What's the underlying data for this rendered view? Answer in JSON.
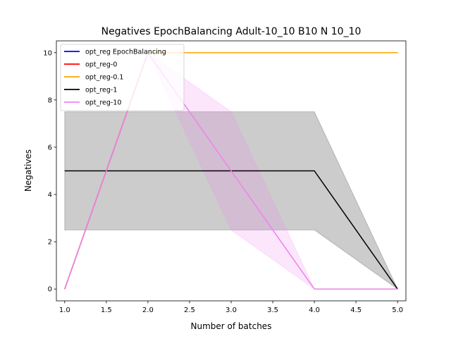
{
  "chart_data": {
    "type": "line",
    "title": "Negatives EpochBalancing Adult-10_10 B10 N 10_10",
    "xlabel": "Number of batches",
    "ylabel": "Negatives",
    "xlim": [
      0.9,
      5.1
    ],
    "ylim": [
      -0.5,
      10.5
    ],
    "xticks": [
      1.0,
      1.5,
      2.0,
      2.5,
      3.0,
      3.5,
      4.0,
      4.5,
      5.0
    ],
    "xtick_labels": [
      "1.0",
      "1.5",
      "2.0",
      "2.5",
      "3.0",
      "3.5",
      "4.0",
      "4.5",
      "5.0"
    ],
    "yticks": [
      0,
      2,
      4,
      6,
      8,
      10
    ],
    "ytick_labels": [
      "0",
      "2",
      "4",
      "6",
      "8",
      "10"
    ],
    "grid": false,
    "legend_position": "top-left",
    "x": [
      1,
      2,
      3,
      4,
      5
    ],
    "series": [
      {
        "name": "opt_reg EpochBalancing",
        "color": "#0000ff",
        "values": [
          0,
          10,
          10,
          10,
          10
        ],
        "band": null
      },
      {
        "name": "opt_reg-0",
        "color": "#ff0000",
        "values": [
          0,
          10,
          10,
          10,
          10
        ],
        "band": null
      },
      {
        "name": "opt_reg-0.1",
        "color": "#ffa500",
        "values": [
          0,
          10,
          10,
          10,
          10
        ],
        "band": null
      },
      {
        "name": "opt_reg-1",
        "color": "#000000",
        "values": [
          5,
          5,
          5,
          5,
          0
        ],
        "band": {
          "lower": [
            2.5,
            2.5,
            2.5,
            2.5,
            0
          ],
          "upper": [
            7.5,
            7.5,
            7.5,
            7.5,
            0
          ],
          "color": "#000000",
          "opacity": 0.2
        }
      },
      {
        "name": "opt_reg-10",
        "color": "#ee82ee",
        "values": [
          0,
          10,
          5,
          0,
          0
        ],
        "band": {
          "lower": [
            0,
            10,
            2.5,
            0,
            0
          ],
          "upper": [
            0,
            10,
            7.5,
            0,
            0
          ],
          "color": "#ee82ee",
          "opacity": 0.2
        }
      }
    ]
  }
}
